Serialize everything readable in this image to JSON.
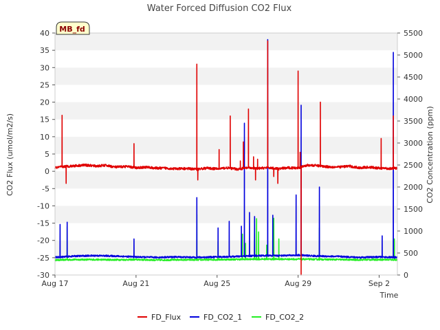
{
  "chart_data": {
    "type": "line",
    "title": "Water Forced Diffusion CO2 Flux",
    "badge": "MB_fd",
    "xlabel": "Time",
    "ylabel_left": "CO2 Flux (umol/m2/s)",
    "ylabel_right": "CO2 Concentration (ppm)",
    "x_range_days": [
      0,
      16.9
    ],
    "ylim_left": [
      -30,
      40
    ],
    "ylim_right": [
      0,
      5500
    ],
    "x_ticks": [
      {
        "day": 0,
        "label": "Aug 17"
      },
      {
        "day": 4,
        "label": "Aug 21"
      },
      {
        "day": 8,
        "label": "Aug 25"
      },
      {
        "day": 12,
        "label": "Aug 29"
      },
      {
        "day": 16,
        "label": "Sep 2"
      }
    ],
    "y_ticks_left": [
      {
        "v": -30,
        "label": "-30"
      },
      {
        "v": -25,
        "label": "-25"
      },
      {
        "v": -20,
        "label": "-20"
      },
      {
        "v": -15,
        "label": "-15"
      },
      {
        "v": -10,
        "label": "-10"
      },
      {
        "v": -5,
        "label": "-5"
      },
      {
        "v": 0,
        "label": "0"
      },
      {
        "v": 5,
        "label": "5"
      },
      {
        "v": 10,
        "label": "10"
      },
      {
        "v": 15,
        "label": "15"
      },
      {
        "v": 20,
        "label": "20"
      },
      {
        "v": 25,
        "label": "25"
      },
      {
        "v": 30,
        "label": "30"
      },
      {
        "v": 35,
        "label": "35"
      },
      {
        "v": 40,
        "label": "40"
      }
    ],
    "y_ticks_right": [
      {
        "v": 0,
        "label": "0"
      },
      {
        "v": 500,
        "label": "500"
      },
      {
        "v": 1000,
        "label": "1000"
      },
      {
        "v": 1500,
        "label": "1500"
      },
      {
        "v": 2000,
        "label": "2000"
      },
      {
        "v": 2500,
        "label": "2500"
      },
      {
        "v": 3000,
        "label": "3000"
      },
      {
        "v": 3500,
        "label": "3500"
      },
      {
        "v": 4000,
        "label": "4000"
      },
      {
        "v": 4500,
        "label": "4500"
      },
      {
        "v": 5000,
        "label": "5000"
      },
      {
        "v": 5500,
        "label": "5500"
      }
    ],
    "series": [
      {
        "name": "FD_Flux",
        "color": "#e00000",
        "axis": "left",
        "baseline": [
          [
            0.0,
            1.0
          ],
          [
            0.5,
            1.4
          ],
          [
            1.0,
            1.6
          ],
          [
            1.5,
            1.8
          ],
          [
            2.0,
            1.5
          ],
          [
            2.5,
            1.7
          ],
          [
            3.0,
            1.2
          ],
          [
            3.5,
            1.4
          ],
          [
            4.0,
            1.0
          ],
          [
            4.5,
            1.2
          ],
          [
            5.0,
            0.9
          ],
          [
            5.5,
            0.9
          ],
          [
            6.0,
            0.7
          ],
          [
            6.5,
            0.8
          ],
          [
            7.0,
            0.6
          ],
          [
            7.5,
            0.9
          ],
          [
            8.0,
            0.7
          ],
          [
            8.5,
            1.0
          ],
          [
            9.0,
            0.6
          ],
          [
            9.5,
            1.0
          ],
          [
            10.0,
            0.8
          ],
          [
            10.5,
            1.1
          ],
          [
            11.0,
            0.7
          ],
          [
            11.5,
            1.0
          ],
          [
            12.0,
            1.0
          ],
          [
            12.5,
            1.8
          ],
          [
            13.0,
            1.6
          ],
          [
            13.5,
            1.3
          ],
          [
            14.0,
            1.2
          ],
          [
            14.5,
            1.5
          ],
          [
            15.0,
            1.0
          ],
          [
            15.5,
            1.2
          ],
          [
            16.0,
            0.9
          ],
          [
            16.5,
            0.8
          ],
          [
            16.9,
            0.9
          ]
        ],
        "spikes": [
          [
            0.35,
            16.2
          ],
          [
            0.55,
            -3.5
          ],
          [
            3.9,
            8.0
          ],
          [
            7.0,
            31.0
          ],
          [
            7.05,
            -2.5
          ],
          [
            8.1,
            6.3
          ],
          [
            8.65,
            16.0
          ],
          [
            9.15,
            3.0
          ],
          [
            9.3,
            8.5
          ],
          [
            9.55,
            18.0
          ],
          [
            9.8,
            4.2
          ],
          [
            9.9,
            -2.5
          ],
          [
            10.0,
            3.5
          ],
          [
            10.5,
            37.7
          ],
          [
            10.8,
            -1.5
          ],
          [
            11.0,
            -3.5
          ],
          [
            12.0,
            29.0
          ],
          [
            12.1,
            5.5
          ],
          [
            12.15,
            -30.0
          ],
          [
            13.1,
            20.0
          ],
          [
            16.1,
            9.5
          ],
          [
            16.7,
            16.0
          ]
        ]
      },
      {
        "name": "FD_CO2_1",
        "color": "#0000dd",
        "axis": "right",
        "baseline": [
          [
            0.0,
            400
          ],
          [
            1.0,
            430
          ],
          [
            2.0,
            440
          ],
          [
            3.0,
            430
          ],
          [
            4.0,
            410
          ],
          [
            5.0,
            400
          ],
          [
            6.0,
            410
          ],
          [
            7.0,
            400
          ],
          [
            8.0,
            410
          ],
          [
            9.0,
            420
          ],
          [
            10.0,
            440
          ],
          [
            11.0,
            440
          ],
          [
            12.0,
            450
          ],
          [
            13.0,
            430
          ],
          [
            14.0,
            420
          ],
          [
            15.0,
            400
          ],
          [
            16.0,
            410
          ],
          [
            16.9,
            400
          ]
        ],
        "spikes": [
          [
            0.25,
            1150
          ],
          [
            0.6,
            1200
          ],
          [
            3.9,
            820
          ],
          [
            7.0,
            1760
          ],
          [
            8.05,
            1070
          ],
          [
            8.6,
            1220
          ],
          [
            9.2,
            1110
          ],
          [
            9.35,
            3450
          ],
          [
            9.6,
            1420
          ],
          [
            9.85,
            1330
          ],
          [
            10.5,
            5350
          ],
          [
            10.75,
            1360
          ],
          [
            11.9,
            1820
          ],
          [
            12.15,
            3860
          ],
          [
            13.05,
            2000
          ],
          [
            16.15,
            890
          ],
          [
            16.7,
            5060
          ]
        ]
      },
      {
        "name": "FD_CO2_2",
        "color": "#22ee22",
        "axis": "right",
        "baseline": [
          [
            0.0,
            340
          ],
          [
            1.0,
            350
          ],
          [
            2.0,
            350
          ],
          [
            3.0,
            345
          ],
          [
            4.0,
            350
          ],
          [
            5.0,
            340
          ],
          [
            6.0,
            345
          ],
          [
            7.0,
            345
          ],
          [
            8.0,
            350
          ],
          [
            9.0,
            355
          ],
          [
            10.0,
            360
          ],
          [
            11.0,
            360
          ],
          [
            12.0,
            360
          ],
          [
            13.0,
            355
          ],
          [
            14.0,
            350
          ],
          [
            15.0,
            345
          ],
          [
            16.0,
            350
          ],
          [
            16.9,
            345
          ]
        ],
        "spikes": [
          [
            0.6,
            1100
          ],
          [
            7.0,
            1370
          ],
          [
            8.05,
            760
          ],
          [
            9.25,
            930
          ],
          [
            9.4,
            720
          ],
          [
            9.85,
            1300
          ],
          [
            9.95,
            1280
          ],
          [
            10.05,
            980
          ],
          [
            10.45,
            680
          ],
          [
            10.8,
            1290
          ],
          [
            11.05,
            820
          ],
          [
            13.05,
            1070
          ],
          [
            16.75,
            820
          ]
        ]
      }
    ],
    "legend": [
      "FD_Flux",
      "FD_CO2_1",
      "FD_CO2_2"
    ]
  }
}
